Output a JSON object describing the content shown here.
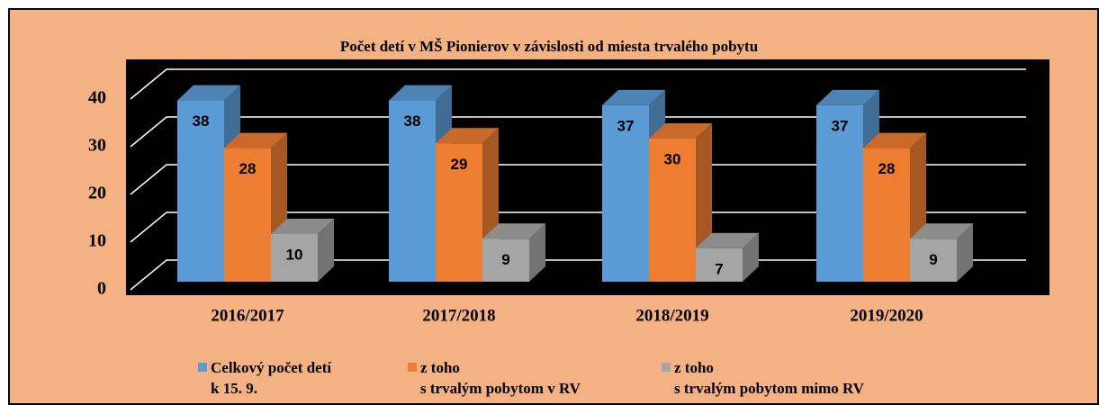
{
  "chart_data": {
    "type": "bar3d",
    "title": "Počet detí v MŠ  Pionierov v závislosti od miesta trvalého pobytu",
    "categories": [
      "2016/2017",
      "2017/2018",
      "2018/2019",
      "2019/2020"
    ],
    "series": [
      {
        "name": "Celkový počet detí\nk 15. 9.",
        "color": "#5b9bd5",
        "values": [
          38,
          38,
          37,
          37
        ]
      },
      {
        "name": "z toho\ns trvalým pobytom v RV",
        "color": "#ed7d31",
        "values": [
          28,
          29,
          30,
          28
        ]
      },
      {
        "name": "z toho\ns trvalým pobytom  mimo RV",
        "color": "#a5a5a5",
        "values": [
          10,
          9,
          7,
          9
        ]
      }
    ],
    "ylim": [
      0,
      40
    ],
    "yticks": [
      0,
      10,
      20,
      30,
      40
    ],
    "grid": true,
    "legend": "bottom"
  }
}
